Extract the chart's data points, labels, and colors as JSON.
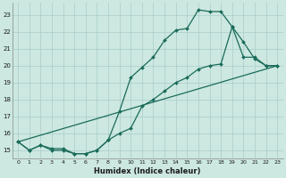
{
  "xlabel": "Humidex (Indice chaleur)",
  "bg_color": "#cce8e0",
  "grid_color": "#aacccc",
  "line_color": "#1a6b5a",
  "xlim": [
    -0.5,
    23.5
  ],
  "ylim": [
    14.5,
    23.7
  ],
  "xticks": [
    0,
    1,
    2,
    3,
    4,
    5,
    6,
    7,
    8,
    9,
    10,
    11,
    12,
    13,
    14,
    15,
    16,
    17,
    18,
    19,
    20,
    21,
    22,
    23
  ],
  "yticks": [
    15,
    16,
    17,
    18,
    19,
    20,
    21,
    22,
    23
  ],
  "series": [
    {
      "x": [
        0,
        1,
        2,
        3,
        4,
        5,
        6,
        7,
        8,
        9,
        10,
        11,
        12,
        13,
        14,
        15,
        16,
        17,
        18,
        19,
        20,
        21,
        22,
        23
      ],
      "y": [
        15.5,
        15.0,
        15.3,
        15.1,
        15.1,
        14.8,
        14.8,
        15.0,
        15.6,
        17.3,
        19.3,
        19.9,
        20.5,
        21.5,
        22.1,
        22.2,
        23.3,
        23.2,
        23.2,
        22.3,
        21.4,
        20.4,
        20.0,
        20.0
      ],
      "markers": true
    },
    {
      "x": [
        0,
        1,
        2,
        3,
        4,
        5,
        6,
        7,
        8,
        9,
        10,
        11,
        12,
        13,
        14,
        15,
        16,
        17,
        18,
        19,
        20,
        21,
        22,
        23
      ],
      "y": [
        15.5,
        15.0,
        15.3,
        15.0,
        15.0,
        14.8,
        14.8,
        15.0,
        15.6,
        16.0,
        16.3,
        17.6,
        18.0,
        18.5,
        19.0,
        19.3,
        19.8,
        20.0,
        20.1,
        22.3,
        20.5,
        20.5,
        20.0,
        20.0
      ],
      "markers": true
    },
    {
      "x": [
        0,
        23
      ],
      "y": [
        15.5,
        20.0
      ],
      "markers": false
    }
  ]
}
